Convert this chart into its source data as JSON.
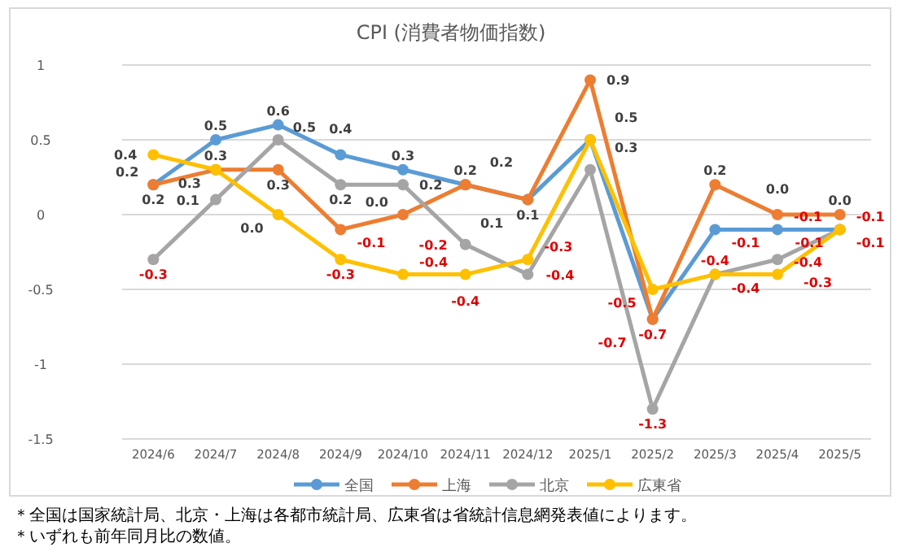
{
  "chart_data": {
    "type": "line",
    "title": "CPI (消費者物価指数)",
    "categories": [
      "2024/6",
      "2024/7",
      "2024/8",
      "2024/9",
      "2024/10",
      "2024/11",
      "2024/12",
      "2025/1",
      "2025/2",
      "2025/3",
      "2025/4",
      "2025/5"
    ],
    "series": [
      {
        "name": "全国",
        "color": "#5b9bd5",
        "values": [
          0.2,
          0.5,
          0.6,
          0.4,
          0.3,
          0.2,
          0.1,
          0.5,
          -0.7,
          -0.1,
          -0.1,
          -0.1
        ],
        "value_labels": [
          "0.2",
          "0.5",
          "0.6",
          "0.4",
          "0.3",
          "0.2",
          "0.1",
          "0.5",
          "-0.7",
          "-0.1",
          "-0.1",
          "-0.1"
        ]
      },
      {
        "name": "上海",
        "color": "#ed7d31",
        "values": [
          0.2,
          0.3,
          0.3,
          -0.1,
          0.0,
          0.2,
          0.1,
          0.9,
          -0.7,
          0.2,
          0.0,
          0.0
        ],
        "value_labels": [
          "0.2",
          "0.3",
          "0.3",
          "-0.1",
          "0.0",
          "0.2",
          "0.1",
          "0.9",
          "-0.7",
          "0.2",
          "0.0",
          "0.0"
        ]
      },
      {
        "name": "北京",
        "color": "#a5a5a5",
        "values": [
          -0.3,
          0.1,
          0.5,
          0.2,
          0.2,
          -0.2,
          -0.4,
          0.3,
          -1.3,
          -0.4,
          -0.3,
          -0.1
        ],
        "value_labels": [
          "-0.3",
          "0.1",
          "0.5",
          "0.2",
          "0.2",
          "-0.2",
          "-0.4",
          "0.3",
          "-1.3",
          "-0.4",
          "-0.3",
          "-0.1"
        ]
      },
      {
        "name": "広東省",
        "color": "#ffc000",
        "values": [
          0.4,
          0.3,
          0.0,
          -0.3,
          -0.4,
          -0.4,
          -0.3,
          0.5,
          -0.5,
          -0.4,
          -0.4,
          -0.1
        ],
        "value_labels": [
          "0.4",
          "0.3",
          "0.0",
          "-0.3",
          "-0.4",
          "-0.4",
          "-0.3",
          null,
          "-0.5",
          "-0.4",
          "-0.4",
          "-0.1"
        ]
      }
    ],
    "ylim": [
      -1.5,
      1
    ],
    "yticks": [
      -1.5,
      -1,
      -0.5,
      0,
      0.5,
      1
    ],
    "grid": "y",
    "legend": "bottom",
    "marker": "circle",
    "line_style": "solid",
    "annotations": [
      "＊全国は国家統計局、北京・上海は各都市統計局、広東省は省統計信息網発表値によります。",
      "＊いずれも前年同月比の数値。"
    ]
  }
}
